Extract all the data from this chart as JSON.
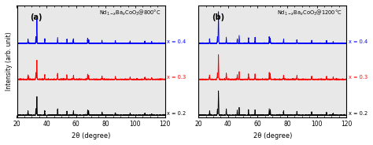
{
  "panel_a_label": "(a)",
  "panel_b_label": "(b)",
  "panel_a_title": "Nd$_{1-x}$Ba$_x$CoO$_3$@800°C",
  "panel_b_title": "Nd$_{1-x}$Ba$_x$CoO$_3$@1200°C",
  "xlabel": "2θ (degree)",
  "ylabel": "Intensity (arb. unit)",
  "xlim": [
    20,
    120
  ],
  "xticks": [
    20,
    40,
    60,
    80,
    100,
    120
  ],
  "colors": [
    "black",
    "red",
    "blue"
  ],
  "series_labels": [
    "x = 0.2",
    "x = 0.3",
    "x = 0.4"
  ],
  "offsets": [
    0.0,
    0.32,
    0.64
  ],
  "bg_color": "#e8e8e8",
  "noise_scale": 0.003,
  "seed": 7,
  "peak_sigma": 0.15,
  "peaks_a_x02": [
    27.5,
    32.8,
    33.5,
    38.8,
    47.5,
    53.8,
    58.2,
    67.8,
    68.5,
    77.5,
    86.5,
    96.5,
    106.5,
    111.0
  ],
  "peaks_a_h02": [
    0.04,
    0.06,
    0.17,
    0.04,
    0.055,
    0.038,
    0.038,
    0.045,
    0.035,
    0.028,
    0.025,
    0.02,
    0.018,
    0.016
  ],
  "peaks_a_x03": [
    27.5,
    32.8,
    33.5,
    38.8,
    47.5,
    53.8,
    58.2,
    67.8,
    68.5,
    77.5,
    86.5,
    96.5,
    106.5,
    111.0
  ],
  "peaks_a_h03": [
    0.04,
    0.06,
    0.17,
    0.04,
    0.055,
    0.038,
    0.038,
    0.045,
    0.035,
    0.028,
    0.025,
    0.02,
    0.018,
    0.016
  ],
  "peaks_a_x04": [
    27.5,
    32.8,
    33.5,
    38.8,
    47.5,
    53.8,
    58.2,
    67.8,
    68.5,
    77.5,
    86.5,
    96.5,
    106.5,
    111.0
  ],
  "peaks_a_h04": [
    0.04,
    0.06,
    0.22,
    0.04,
    0.055,
    0.038,
    0.038,
    0.045,
    0.035,
    0.028,
    0.025,
    0.02,
    0.018,
    0.016
  ],
  "peaks_b_x02": [
    27.5,
    32.8,
    33.5,
    38.8,
    46.2,
    47.5,
    53.8,
    58.2,
    67.8,
    68.5,
    77.5,
    86.5,
    96.5,
    106.5,
    111.0
  ],
  "peaks_b_h02": [
    0.04,
    0.06,
    0.22,
    0.055,
    0.04,
    0.07,
    0.05,
    0.05,
    0.06,
    0.05,
    0.038,
    0.035,
    0.028,
    0.025,
    0.018
  ],
  "peaks_b_x03": [
    27.5,
    32.8,
    33.5,
    38.8,
    46.2,
    47.5,
    53.8,
    58.2,
    67.8,
    68.5,
    77.5,
    86.5,
    96.5,
    106.5,
    111.0
  ],
  "peaks_b_h03": [
    0.04,
    0.06,
    0.22,
    0.055,
    0.04,
    0.07,
    0.05,
    0.05,
    0.06,
    0.05,
    0.038,
    0.035,
    0.028,
    0.025,
    0.018
  ],
  "peaks_b_x04": [
    27.5,
    32.8,
    33.5,
    38.8,
    46.2,
    47.5,
    53.8,
    58.2,
    67.8,
    68.5,
    77.5,
    86.5,
    96.5,
    106.5,
    111.0
  ],
  "peaks_b_h04": [
    0.04,
    0.06,
    0.28,
    0.055,
    0.04,
    0.07,
    0.05,
    0.05,
    0.06,
    0.05,
    0.038,
    0.035,
    0.028,
    0.025,
    0.018
  ]
}
